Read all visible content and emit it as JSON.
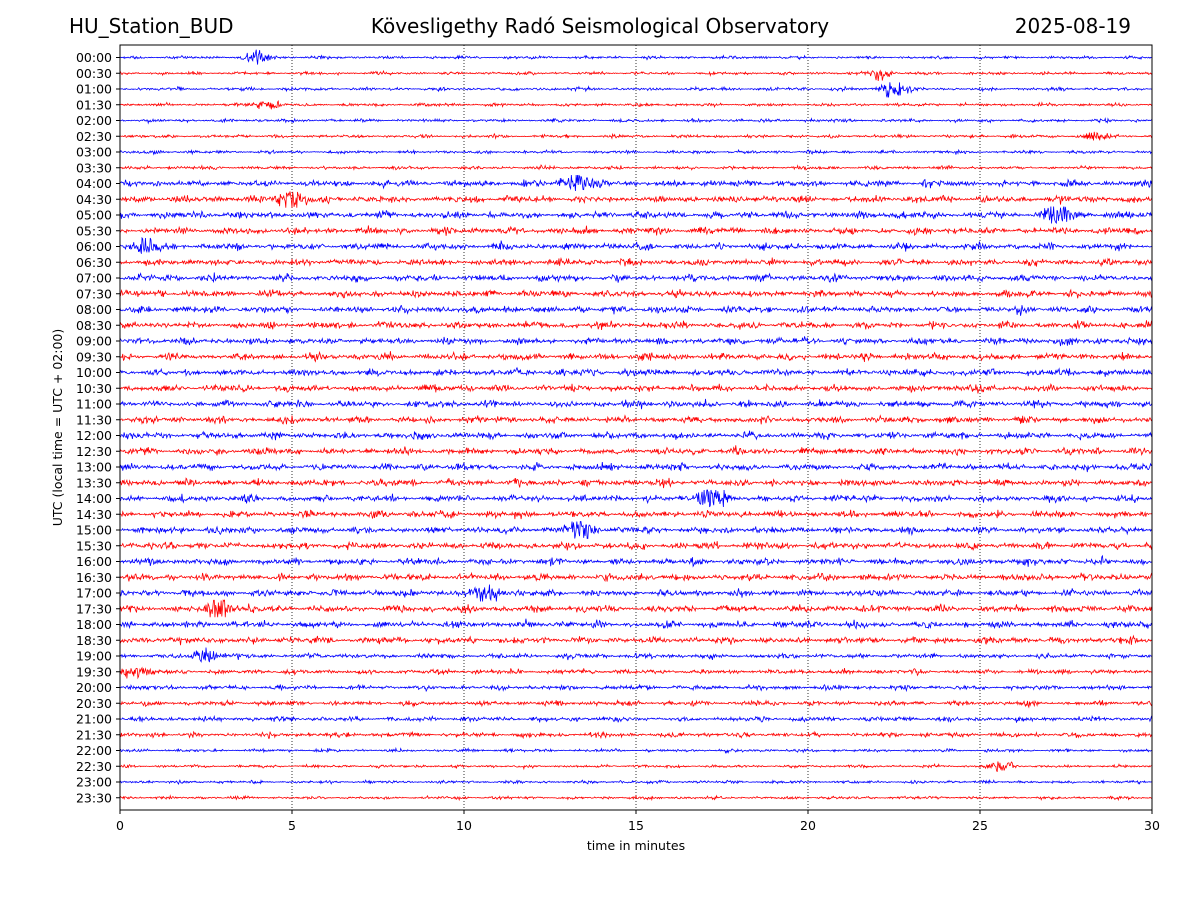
{
  "header": {
    "station": "HU_Station_BUD",
    "observatory": "Kövesligethy Radó Seismological Observatory",
    "date": "2025-08-19"
  },
  "colors": {
    "even_rows": "#0000ff",
    "odd_rows": "#ff0000",
    "grid": "#000000"
  },
  "chart_data": {
    "type": "line",
    "title": "Kövesligethy Radó Seismological Observatory",
    "xlabel": "time in minutes",
    "ylabel": "UTC (local time = UTC + 02:00)",
    "xlim": [
      0,
      30
    ],
    "x_ticks": [
      0,
      5,
      10,
      15,
      20,
      25,
      30
    ],
    "grid": "vertical dotted at x ticks",
    "legend": "none",
    "rows": [
      "00:00",
      "00:30",
      "01:00",
      "01:30",
      "02:00",
      "02:30",
      "03:00",
      "03:30",
      "04:00",
      "04:30",
      "05:00",
      "05:30",
      "06:00",
      "06:30",
      "07:00",
      "07:30",
      "08:00",
      "08:30",
      "09:00",
      "09:30",
      "10:00",
      "10:30",
      "11:00",
      "11:30",
      "12:00",
      "12:30",
      "13:00",
      "13:30",
      "14:00",
      "14:30",
      "15:00",
      "15:30",
      "16:00",
      "16:30",
      "17:00",
      "17:30",
      "18:00",
      "18:30",
      "19:00",
      "19:30",
      "20:00",
      "20:30",
      "21:00",
      "21:30",
      "22:00",
      "22:30",
      "23:00",
      "23:30"
    ],
    "row_colors": "alternating blue (on the hour) and red (half hour)",
    "notable_bursts": [
      {
        "row": "00:00",
        "minute": 4.0,
        "relative_amplitude": 2.2
      },
      {
        "row": "00:30",
        "minute": 22.1,
        "relative_amplitude": 1.6
      },
      {
        "row": "01:00",
        "minute": 22.5,
        "relative_amplitude": 2.8
      },
      {
        "row": "01:30",
        "minute": 4.3,
        "relative_amplitude": 1.5
      },
      {
        "row": "02:30",
        "minute": 28.5,
        "relative_amplitude": 1.4
      },
      {
        "row": "04:00",
        "minute": 13.3,
        "relative_amplitude": 1.5
      },
      {
        "row": "04:30",
        "minute": 5.0,
        "relative_amplitude": 1.7
      },
      {
        "row": "05:00",
        "minute": 27.3,
        "relative_amplitude": 1.6
      },
      {
        "row": "06:00",
        "minute": 0.7,
        "relative_amplitude": 1.5
      },
      {
        "row": "14:00",
        "minute": 17.2,
        "relative_amplitude": 2.4
      },
      {
        "row": "15:00",
        "minute": 13.4,
        "relative_amplitude": 1.8
      },
      {
        "row": "17:00",
        "minute": 10.7,
        "relative_amplitude": 1.6
      },
      {
        "row": "17:30",
        "minute": 2.9,
        "relative_amplitude": 1.6
      },
      {
        "row": "19:00",
        "minute": 2.5,
        "relative_amplitude": 1.4
      },
      {
        "row": "19:30",
        "minute": 0.3,
        "relative_amplitude": 1.5
      },
      {
        "row": "22:30",
        "minute": 25.6,
        "relative_amplitude": 1.4
      }
    ]
  }
}
